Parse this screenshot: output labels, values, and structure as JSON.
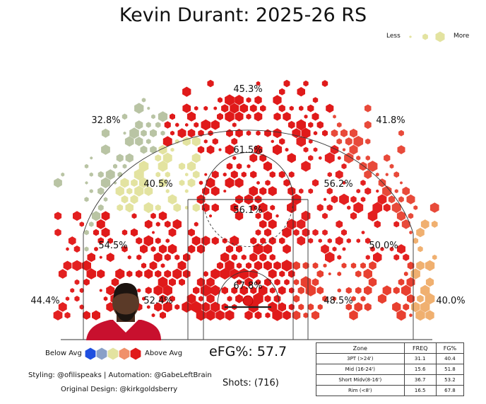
{
  "title": "Kevin Durant: 2025-26 RS",
  "legend_size": {
    "less": "Less",
    "more": "More"
  },
  "legend_color": {
    "below": "Below Avg",
    "above": "Above Avg",
    "colors": [
      "#1f4fe0",
      "#8aa0c8",
      "#e3e3a0",
      "#f0906a",
      "#e01a1a"
    ]
  },
  "efg": "eFG%: 57.7",
  "shots": "Shots: (716)",
  "styling": "Styling: @ofilispeaks | Automation: @GabeLeftBrain",
  "original": "Original Design: @kirkgoldsberry",
  "table": {
    "headers": [
      "Zone",
      "FREQ",
      "FG%"
    ],
    "rows": [
      [
        "3PT (>24')",
        "31.1",
        "40.4"
      ],
      [
        "Mid (16-24')",
        "15.6",
        "51.8"
      ],
      [
        "Short Midv(8-16')",
        "36.7",
        "53.2"
      ],
      [
        "Rim (<8')",
        "16.5",
        "67.8"
      ]
    ]
  },
  "chart_data": {
    "type": "heatmap",
    "title": "Kevin Durant: 2025-26 RS",
    "zones": [
      {
        "name": "left-corner-3",
        "fg_pct": "44.4%",
        "color": "#e32020"
      },
      {
        "name": "left-wing-3",
        "fg_pct": "32.8%",
        "color": "#b9c4a4"
      },
      {
        "name": "top-3",
        "fg_pct": "45.3%",
        "color": "#e01a1a"
      },
      {
        "name": "right-wing-3",
        "fg_pct": "41.8%",
        "color": "#e84a3a"
      },
      {
        "name": "right-corner-3",
        "fg_pct": "40.0%",
        "color": "#f0b070"
      },
      {
        "name": "left-mid-wing",
        "fg_pct": "40.5%",
        "color": "#e3e3a0"
      },
      {
        "name": "top-mid",
        "fg_pct": "61.5%",
        "color": "#e01a1a"
      },
      {
        "name": "right-mid-wing",
        "fg_pct": "56.2%",
        "color": "#e32020"
      },
      {
        "name": "left-baseline-mid",
        "fg_pct": "54.5%",
        "color": "#e01a1a"
      },
      {
        "name": "right-baseline-mid",
        "fg_pct": "50.0%",
        "color": "#e32020"
      },
      {
        "name": "paint-short-mid",
        "fg_pct": "56.1%",
        "color": "#e01a1a"
      },
      {
        "name": "left-short-baseline",
        "fg_pct": "52.4%",
        "color": "#e01a1a"
      },
      {
        "name": "right-short-baseline",
        "fg_pct": "48.5%",
        "color": "#e84030"
      },
      {
        "name": "rim",
        "fg_pct": "67.8%",
        "color": "#e01a1a"
      }
    ]
  }
}
